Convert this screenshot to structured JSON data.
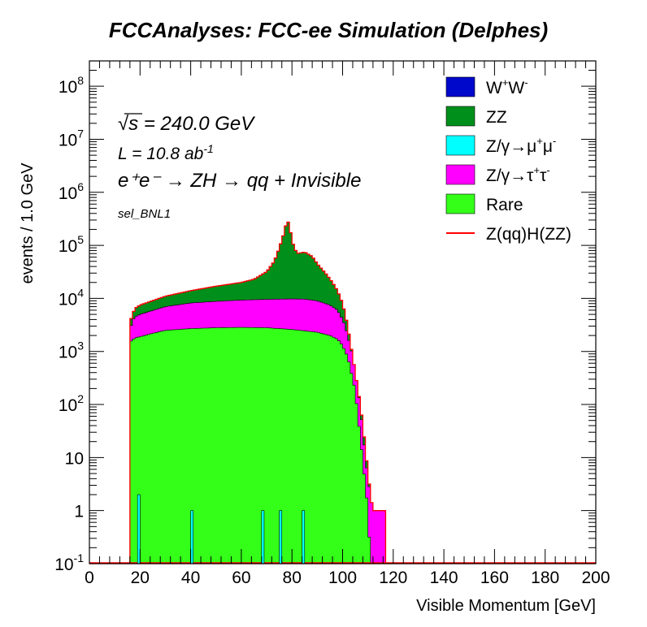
{
  "chart_data": {
    "type": "histogram-stacked",
    "title": "FCCAnalyses: FCC-ee Simulation (Delphes)",
    "xlabel": "Visible Momentum [GeV]",
    "ylabel": "events / 1.0 GeV",
    "xlim": [
      0,
      200
    ],
    "ylim": [
      0.1,
      300000000
    ],
    "yscale": "log",
    "bin_width": 1.0,
    "xticks": [
      "0",
      "20",
      "40",
      "60",
      "80",
      "100",
      "120",
      "140",
      "160",
      "180",
      "200"
    ],
    "yticks": [
      {
        "base": "10",
        "exp": "-1",
        "value": 0.1
      },
      {
        "base": "1",
        "exp": "",
        "value": 1
      },
      {
        "base": "10",
        "exp": "",
        "value": 10
      },
      {
        "base": "10",
        "exp": "2",
        "value": 100
      },
      {
        "base": "10",
        "exp": "3",
        "value": 1000
      },
      {
        "base": "10",
        "exp": "4",
        "value": 10000
      },
      {
        "base": "10",
        "exp": "5",
        "value": 100000
      },
      {
        "base": "10",
        "exp": "6",
        "value": 1000000
      },
      {
        "base": "10",
        "exp": "7",
        "value": 10000000
      },
      {
        "base": "10",
        "exp": "8",
        "value": 100000000
      }
    ],
    "annotations": {
      "sqrt_s": "√s = 240.0 GeV",
      "lumi_prefix": "L = 10.8 ab",
      "lumi_exp": "-1",
      "process": "e⁺e⁻ → ZH → qq + Invisible",
      "selection": "sel_BNL1"
    },
    "series_cumulative_note": "top edge values of each stacked layer (cumulative), events per 1 GeV",
    "series": [
      {
        "name": "Rare",
        "legend": "Rare",
        "color": "#33ff19",
        "points": [
          [
            15.5,
            0.1
          ],
          [
            16,
            1500
          ],
          [
            18,
            1800
          ],
          [
            20,
            1900
          ],
          [
            25,
            2200
          ],
          [
            30,
            2500
          ],
          [
            40,
            2700
          ],
          [
            50,
            2800
          ],
          [
            60,
            2850
          ],
          [
            70,
            2800
          ],
          [
            80,
            2600
          ],
          [
            90,
            2300
          ],
          [
            95,
            2000
          ],
          [
            98,
            1700
          ],
          [
            100,
            1300
          ],
          [
            101,
            1000
          ],
          [
            102,
            800
          ],
          [
            103,
            500
          ],
          [
            104,
            300
          ],
          [
            105,
            180
          ],
          [
            106,
            60
          ],
          [
            107,
            25
          ],
          [
            108,
            8
          ],
          [
            109,
            3
          ],
          [
            110,
            1
          ],
          [
            111,
            0.1
          ]
        ],
        "spikes": [
          [
            19,
            2
          ],
          [
            40,
            1
          ],
          [
            68,
            1
          ],
          [
            75,
            1
          ],
          [
            84,
            1
          ]
        ]
      },
      {
        "name": "Z/γ→μ⁺μ⁻",
        "legend": "Z/γ→μ⁺μ⁻",
        "color": "#00ffff",
        "points": [
          [
            97,
            0.1
          ],
          [
            98,
            0.5
          ],
          [
            99,
            1
          ],
          [
            100,
            3
          ],
          [
            101,
            6
          ],
          [
            102,
            12
          ],
          [
            103,
            16
          ],
          [
            104,
            12
          ],
          [
            105,
            8
          ],
          [
            106,
            4
          ],
          [
            107,
            0.1
          ]
        ]
      },
      {
        "name": "Z/γ→τ⁺τ⁻",
        "legend": "Z/γ→τ⁺τ⁻",
        "color": "#ff00ff",
        "points": [
          [
            15.5,
            0.1
          ],
          [
            16,
            2500
          ],
          [
            17,
            3800
          ],
          [
            18,
            4500
          ],
          [
            20,
            5000
          ],
          [
            30,
            7000
          ],
          [
            40,
            8200
          ],
          [
            50,
            8800
          ],
          [
            60,
            9300
          ],
          [
            70,
            9600
          ],
          [
            80,
            9800
          ],
          [
            85,
            9700
          ],
          [
            90,
            9000
          ],
          [
            95,
            7500
          ],
          [
            98,
            6000
          ],
          [
            100,
            4000
          ],
          [
            101,
            3000
          ],
          [
            102,
            2000
          ],
          [
            103,
            1300
          ],
          [
            104,
            800
          ],
          [
            105,
            400
          ],
          [
            106,
            200
          ],
          [
            107,
            90
          ],
          [
            108,
            30
          ],
          [
            109,
            10
          ],
          [
            110,
            4
          ],
          [
            111,
            2
          ],
          [
            112,
            1
          ],
          [
            117,
            1
          ],
          [
            117.5,
            0.1
          ]
        ]
      },
      {
        "name": "ZZ",
        "legend": "ZZ",
        "color": "#008f1a",
        "points": [
          [
            15.5,
            0.1
          ],
          [
            16,
            3500
          ],
          [
            17,
            5000
          ],
          [
            18,
            6500
          ],
          [
            20,
            7500
          ],
          [
            30,
            11000
          ],
          [
            40,
            14000
          ],
          [
            50,
            17000
          ],
          [
            60,
            20000
          ],
          [
            65,
            23000
          ],
          [
            70,
            32000
          ],
          [
            73,
            50000
          ],
          [
            75,
            90000
          ],
          [
            77,
            180000
          ],
          [
            78,
            300000
          ],
          [
            79,
            250000
          ],
          [
            80,
            120000
          ],
          [
            82,
            70000
          ],
          [
            85,
            75000
          ],
          [
            88,
            62000
          ],
          [
            90,
            45000
          ],
          [
            92,
            35000
          ],
          [
            94,
            27000
          ],
          [
            96,
            20000
          ],
          [
            98,
            14000
          ],
          [
            100,
            8000
          ],
          [
            101,
            5000
          ],
          [
            102,
            3000
          ],
          [
            103,
            1500
          ],
          [
            104,
            800
          ],
          [
            105,
            400
          ],
          [
            106,
            200
          ],
          [
            107,
            100
          ],
          [
            108,
            40
          ],
          [
            109,
            15
          ],
          [
            110,
            5
          ],
          [
            111,
            2
          ],
          [
            112,
            1
          ],
          [
            117,
            1
          ],
          [
            117.5,
            0.1
          ]
        ]
      },
      {
        "name": "W⁺W⁻",
        "legend": "W⁺W⁻",
        "color": "#0008cc",
        "points": [
          [
            15.5,
            0.1
          ],
          [
            16,
            3000
          ],
          [
            17,
            4500
          ],
          [
            18,
            5800
          ],
          [
            20,
            6500
          ],
          [
            30,
            8500
          ],
          [
            40,
            10000
          ],
          [
            50,
            11000
          ],
          [
            60,
            12000
          ],
          [
            65,
            13000
          ],
          [
            70,
            15000
          ],
          [
            75,
            25000
          ],
          [
            78,
            40000
          ],
          [
            80,
            55000
          ],
          [
            82,
            68000
          ],
          [
            85,
            75000
          ],
          [
            88,
            62000
          ],
          [
            90,
            45000
          ],
          [
            92,
            35000
          ],
          [
            94,
            27000
          ],
          [
            96,
            20000
          ],
          [
            98,
            14000
          ],
          [
            100,
            8000
          ],
          [
            101,
            5000
          ],
          [
            102,
            3000
          ],
          [
            103,
            1500
          ],
          [
            104,
            800
          ],
          [
            105,
            400
          ],
          [
            106,
            200
          ],
          [
            107,
            100
          ],
          [
            108,
            40
          ],
          [
            109,
            15
          ],
          [
            110,
            5
          ],
          [
            111,
            2
          ],
          [
            112,
            1
          ],
          [
            117,
            1
          ],
          [
            117.5,
            0.1
          ]
        ]
      },
      {
        "name": "Z(qq)H(ZZ)",
        "legend": "Z(qq)H(ZZ)",
        "color": "#ff0000",
        "style": "line",
        "points": [
          [
            0,
            0.1
          ],
          [
            200,
            0.1
          ]
        ]
      }
    ],
    "legend": {
      "position": "top-right",
      "entries": [
        {
          "label_main": "W",
          "sup1": "+",
          "mid": "W",
          "sup2": "-",
          "color": "#0008cc",
          "kind": "box"
        },
        {
          "label": "ZZ",
          "color": "#008f1a",
          "kind": "box"
        },
        {
          "label": "Z/γ→μ",
          "sup1": "+",
          "mid": "μ",
          "sup2": "-",
          "color": "#00ffff",
          "kind": "box"
        },
        {
          "label": "Z/γ→τ",
          "sup1": "+",
          "mid": "τ",
          "sup2": "-",
          "color": "#ff00ff",
          "kind": "box"
        },
        {
          "label": "Rare",
          "color": "#33ff19",
          "kind": "box"
        },
        {
          "label": "Z(qq)H(ZZ)",
          "color": "#ff0000",
          "kind": "line"
        }
      ]
    }
  }
}
